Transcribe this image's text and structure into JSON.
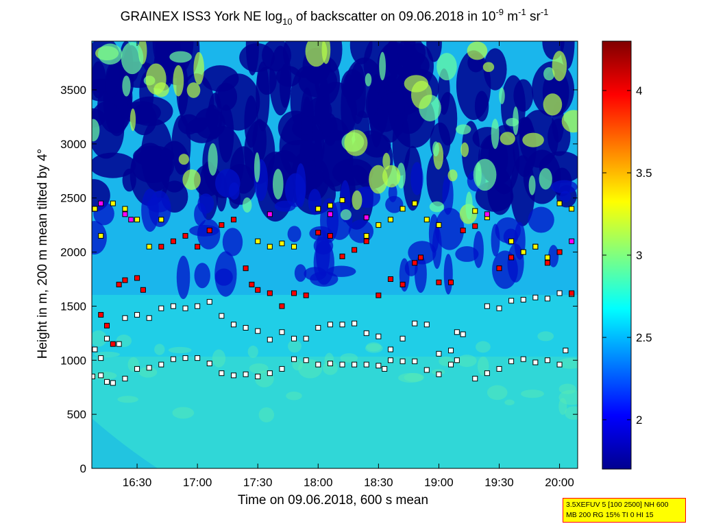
{
  "chart_data": {
    "type": "heatmap",
    "title": {
      "prefix": "GRAINEX ISS3 York NE log",
      "prefix_sub": "10",
      "middle": " of backscatter on 09.06.2018 in 10",
      "sup1": "-9",
      "unit1": " m",
      "sup2": "-1",
      "unit2": " sr",
      "sup3": "-1"
    },
    "xlabel": "Time on 09.06.2018, 600 s mean",
    "ylabel": "Height in m, 200 m mean tilted by 4°",
    "x_unit": "hours",
    "xlim": [
      16.125,
      20.15
    ],
    "ylim": [
      0,
      3950
    ],
    "x_ticks": [
      {
        "value": 16.5,
        "label": "16:30"
      },
      {
        "value": 17.0,
        "label": "17:00"
      },
      {
        "value": 17.5,
        "label": "17:30"
      },
      {
        "value": 18.0,
        "label": "18:00"
      },
      {
        "value": 18.5,
        "label": "18:30"
      },
      {
        "value": 19.0,
        "label": "19:00"
      },
      {
        "value": 19.5,
        "label": "19:30"
      },
      {
        "value": 20.0,
        "label": "20:00"
      }
    ],
    "y_ticks": [
      "0",
      "500",
      "1000",
      "1500",
      "2000",
      "2500",
      "3000",
      "3500"
    ],
    "colorbar": {
      "range": [
        1.7,
        4.3
      ],
      "ticks": [
        "2",
        "2.5",
        "3",
        "3.5",
        "4"
      ],
      "colormap": "jet"
    },
    "layer_series": [
      {
        "marker_color": "#ffffff",
        "points": [
          [
            16.13,
            850
          ],
          [
            16.2,
            860
          ],
          [
            16.25,
            800
          ],
          [
            16.3,
            790
          ],
          [
            16.4,
            830
          ],
          [
            16.5,
            920
          ],
          [
            16.6,
            930
          ],
          [
            16.7,
            960
          ],
          [
            16.8,
            1010
          ],
          [
            16.9,
            1020
          ],
          [
            17.0,
            1020
          ],
          [
            17.1,
            970
          ],
          [
            17.2,
            880
          ],
          [
            17.3,
            860
          ],
          [
            17.4,
            870
          ],
          [
            17.5,
            850
          ],
          [
            17.6,
            880
          ],
          [
            17.7,
            920
          ],
          [
            17.8,
            1010
          ],
          [
            17.9,
            1000
          ],
          [
            18.0,
            960
          ],
          [
            18.1,
            970
          ],
          [
            18.2,
            960
          ],
          [
            18.3,
            960
          ],
          [
            18.4,
            960
          ],
          [
            18.5,
            950
          ],
          [
            18.55,
            920
          ],
          [
            18.6,
            1000
          ],
          [
            18.7,
            990
          ],
          [
            18.8,
            990
          ],
          [
            18.9,
            910
          ],
          [
            19.0,
            870
          ],
          [
            19.1,
            960
          ],
          [
            19.15,
            1000
          ],
          [
            19.3,
            830
          ],
          [
            19.4,
            880
          ],
          [
            19.5,
            920
          ],
          [
            19.6,
            990
          ],
          [
            19.7,
            1010
          ],
          [
            19.8,
            980
          ],
          [
            19.9,
            1000
          ],
          [
            20.0,
            960
          ],
          [
            20.05,
            1090
          ]
        ]
      },
      {
        "marker_color": "#ffffff",
        "points": [
          [
            16.15,
            1100
          ],
          [
            16.2,
            1020
          ],
          [
            16.25,
            1200
          ],
          [
            16.35,
            1150
          ],
          [
            16.4,
            1390
          ],
          [
            16.5,
            1420
          ],
          [
            16.6,
            1390
          ],
          [
            16.7,
            1480
          ],
          [
            16.8,
            1500
          ],
          [
            16.9,
            1480
          ],
          [
            17.0,
            1500
          ],
          [
            17.1,
            1540
          ],
          [
            17.2,
            1410
          ],
          [
            17.3,
            1330
          ],
          [
            17.4,
            1300
          ],
          [
            17.5,
            1270
          ],
          [
            17.6,
            1190
          ],
          [
            17.7,
            1260
          ],
          [
            17.8,
            1200
          ],
          [
            17.9,
            1200
          ],
          [
            18.0,
            1300
          ],
          [
            18.1,
            1330
          ],
          [
            18.2,
            1330
          ],
          [
            18.3,
            1340
          ],
          [
            18.4,
            1250
          ],
          [
            18.5,
            1220
          ],
          [
            18.6,
            1100
          ],
          [
            18.7,
            1200
          ],
          [
            18.8,
            1340
          ],
          [
            18.9,
            1330
          ],
          [
            19.0,
            1060
          ],
          [
            19.1,
            1090
          ],
          [
            19.15,
            1260
          ],
          [
            19.2,
            1240
          ],
          [
            19.4,
            1500
          ],
          [
            19.5,
            1480
          ],
          [
            19.6,
            1550
          ],
          [
            19.7,
            1560
          ],
          [
            19.8,
            1580
          ],
          [
            19.9,
            1570
          ],
          [
            20.0,
            1620
          ],
          [
            20.1,
            1610
          ]
        ]
      },
      {
        "marker_color": "#ff0000",
        "points": [
          [
            16.2,
            1420
          ],
          [
            16.25,
            1320
          ],
          [
            16.3,
            1150
          ],
          [
            16.35,
            1700
          ],
          [
            16.4,
            1740
          ],
          [
            16.5,
            1760
          ],
          [
            16.55,
            1650
          ],
          [
            16.7,
            2050
          ],
          [
            16.8,
            2100
          ],
          [
            16.9,
            2150
          ],
          [
            17.0,
            2050
          ],
          [
            17.1,
            2200
          ],
          [
            17.2,
            2250
          ],
          [
            17.3,
            2300
          ],
          [
            17.4,
            1850
          ],
          [
            17.45,
            1700
          ],
          [
            17.5,
            1650
          ],
          [
            17.6,
            1620
          ],
          [
            17.7,
            1500
          ],
          [
            17.8,
            1620
          ],
          [
            17.9,
            1600
          ],
          [
            18.0,
            2180
          ],
          [
            18.1,
            2150
          ],
          [
            18.2,
            1960
          ],
          [
            18.3,
            2020
          ],
          [
            18.4,
            2100
          ],
          [
            18.5,
            1600
          ],
          [
            18.6,
            1750
          ],
          [
            18.7,
            1700
          ],
          [
            18.8,
            1900
          ],
          [
            18.85,
            1950
          ],
          [
            19.0,
            1720
          ],
          [
            19.1,
            1720
          ],
          [
            19.2,
            2200
          ],
          [
            19.3,
            2240
          ],
          [
            19.5,
            1850
          ],
          [
            19.6,
            1950
          ],
          [
            19.7,
            2000
          ],
          [
            19.8,
            2050
          ],
          [
            19.9,
            1900
          ],
          [
            20.0,
            2000
          ],
          [
            20.1,
            1620
          ]
        ]
      },
      {
        "marker_color": "#ffff00",
        "points": [
          [
            16.15,
            2400
          ],
          [
            16.2,
            2150
          ],
          [
            16.3,
            2450
          ],
          [
            16.4,
            2400
          ],
          [
            16.5,
            2300
          ],
          [
            16.6,
            2050
          ],
          [
            16.7,
            2300
          ],
          [
            17.5,
            2100
          ],
          [
            17.6,
            2050
          ],
          [
            17.7,
            2080
          ],
          [
            17.8,
            2050
          ],
          [
            18.0,
            2400
          ],
          [
            18.1,
            2430
          ],
          [
            18.2,
            2480
          ],
          [
            18.4,
            2150
          ],
          [
            18.5,
            2250
          ],
          [
            18.6,
            2300
          ],
          [
            18.7,
            2400
          ],
          [
            18.8,
            2450
          ],
          [
            18.9,
            2300
          ],
          [
            19.0,
            2250
          ],
          [
            19.3,
            2380
          ],
          [
            19.4,
            2320
          ],
          [
            19.6,
            2100
          ],
          [
            19.7,
            2000
          ],
          [
            19.8,
            2050
          ],
          [
            19.9,
            1950
          ],
          [
            20.0,
            2450
          ],
          [
            20.1,
            2400
          ]
        ]
      },
      {
        "marker_color": "#ff00ff",
        "points": [
          [
            16.2,
            2450
          ],
          [
            16.4,
            2350
          ],
          [
            16.45,
            2300
          ],
          [
            17.6,
            2350
          ],
          [
            18.1,
            2350
          ],
          [
            18.4,
            2320
          ],
          [
            19.4,
            2350
          ],
          [
            20.1,
            2100
          ]
        ]
      }
    ]
  },
  "info_box": {
    "line1": "3.5XEFUV 5 [100 2500] NH 600",
    "line2": "MB 200 RG 15% TI 0 HI 15"
  }
}
